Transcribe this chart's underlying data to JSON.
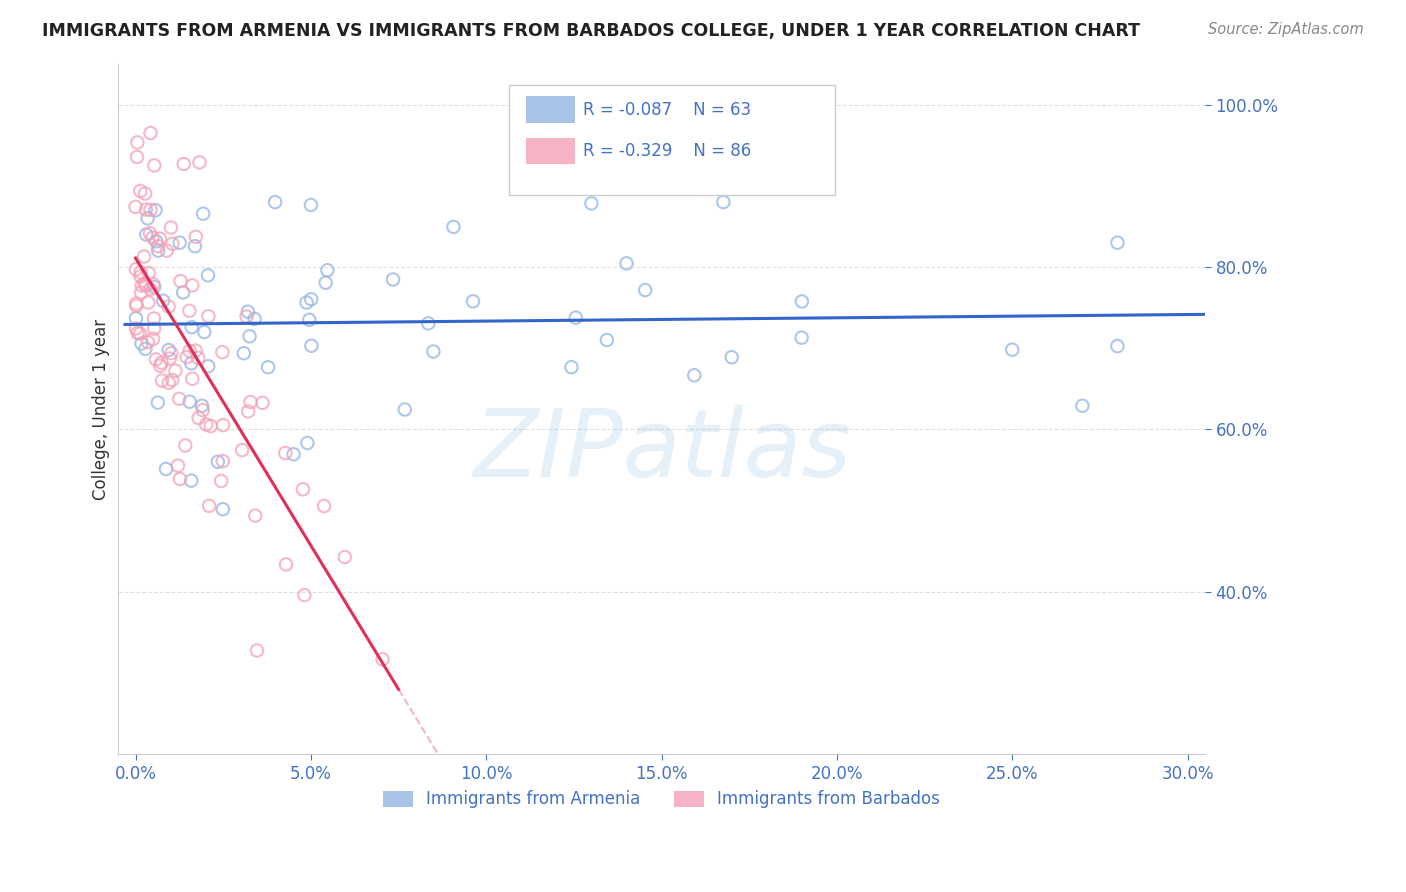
{
  "title": "IMMIGRANTS FROM ARMENIA VS IMMIGRANTS FROM BARBADOS COLLEGE, UNDER 1 YEAR CORRELATION CHART",
  "source": "Source: ZipAtlas.com",
  "ylabel": "College, Under 1 year",
  "x_tick_values": [
    0.0,
    5.0,
    10.0,
    15.0,
    20.0,
    25.0,
    30.0
  ],
  "y_tick_values": [
    40.0,
    60.0,
    80.0,
    100.0
  ],
  "ylim": [
    20.0,
    105.0
  ],
  "xlim": [
    -0.5,
    30.5
  ],
  "armenia_color": "#92b4e3",
  "barbados_color": "#f4a0b5",
  "armenia_edge_color": "#92b4e3",
  "barbados_edge_color": "#f4a0b5",
  "armenia_line_color": "#3366cc",
  "barbados_line_color": "#e0305a",
  "armenia_R": "-0.087",
  "armenia_N": "63",
  "barbados_R": "-0.329",
  "barbados_N": "86",
  "legend_label_armenia": "Immigrants from Armenia",
  "legend_label_barbados": "Immigrants from Barbados",
  "watermark": "ZIPatlas",
  "background_color": "#ffffff",
  "grid_color": "#cccccc",
  "axis_color": "#4472c4",
  "title_color": "#222222",
  "source_color": "#888888",
  "legend_text_color": "#4472c4",
  "marker_size": 80,
  "marker_linewidth": 1.5
}
